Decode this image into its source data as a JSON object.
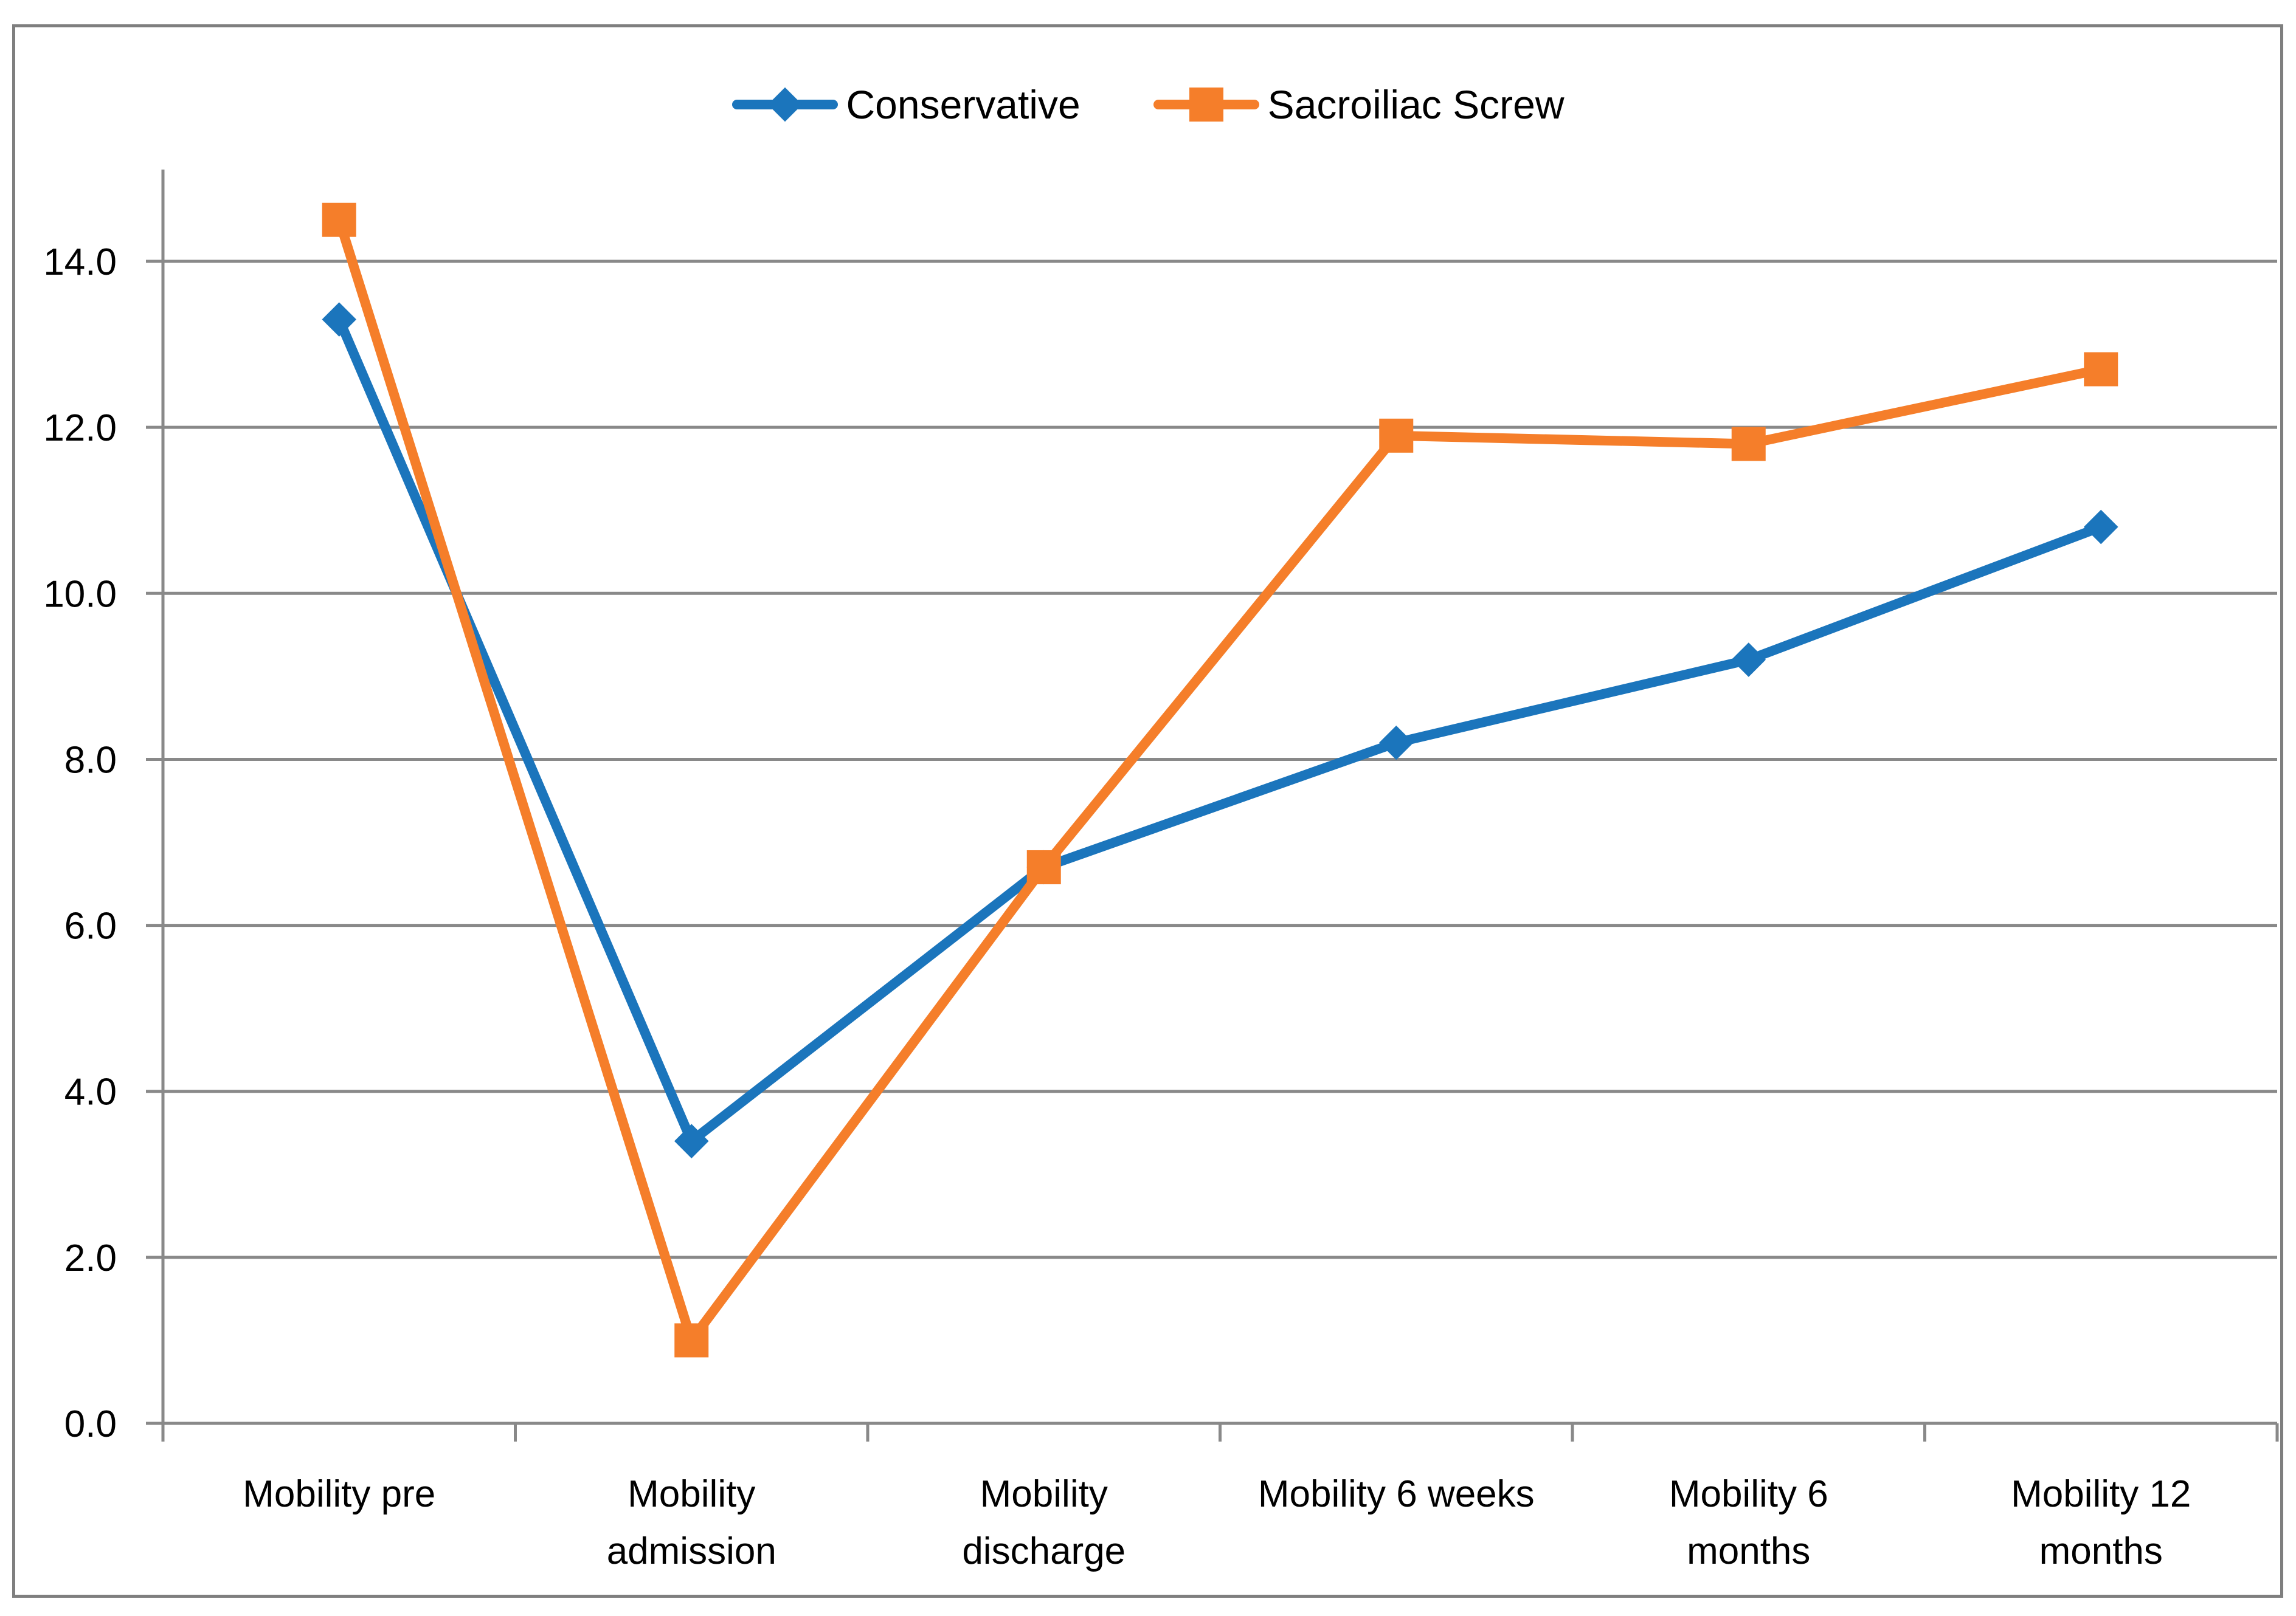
{
  "figure": {
    "background": "#FFFFFF",
    "border_color": "#7F7F7F"
  },
  "chart_data": {
    "type": "line",
    "title": "",
    "xlabel": "",
    "ylabel": "",
    "categories": [
      "Mobility pre",
      "Mobility admission",
      "Mobility discharge",
      "Mobility 6 weeks",
      "Mobility 6 months",
      "Mobility 12 months"
    ],
    "category_label_lines": [
      [
        "Mobility pre"
      ],
      [
        "Mobility",
        "admission"
      ],
      [
        "Mobility",
        "discharge"
      ],
      [
        "Mobility 6 weeks"
      ],
      [
        "Mobility 6",
        "months"
      ],
      [
        "Mobility 12",
        "months"
      ]
    ],
    "series": [
      {
        "name": "Conservative",
        "color": "#1B75BC",
        "marker": "diamond",
        "values": [
          13.3,
          3.4,
          6.7,
          8.2,
          9.2,
          10.8
        ]
      },
      {
        "name": "Sacroiliac Screw",
        "color": "#F57E2A",
        "marker": "square",
        "values": [
          14.5,
          1.0,
          6.7,
          11.9,
          11.8,
          12.7
        ]
      }
    ],
    "ylim": [
      0,
      15.1
    ],
    "yticks": {
      "values": [
        0,
        2,
        4,
        6,
        8,
        10,
        12,
        14
      ],
      "labels": [
        "0.0",
        "2.0",
        "4.0",
        "6.0",
        "8.0",
        "10.0",
        "12.0",
        "14.0"
      ]
    },
    "grid": true,
    "legend_position": "top",
    "colors": {
      "gridline": "#898989",
      "axis": "#898989",
      "text": "#000000"
    }
  }
}
